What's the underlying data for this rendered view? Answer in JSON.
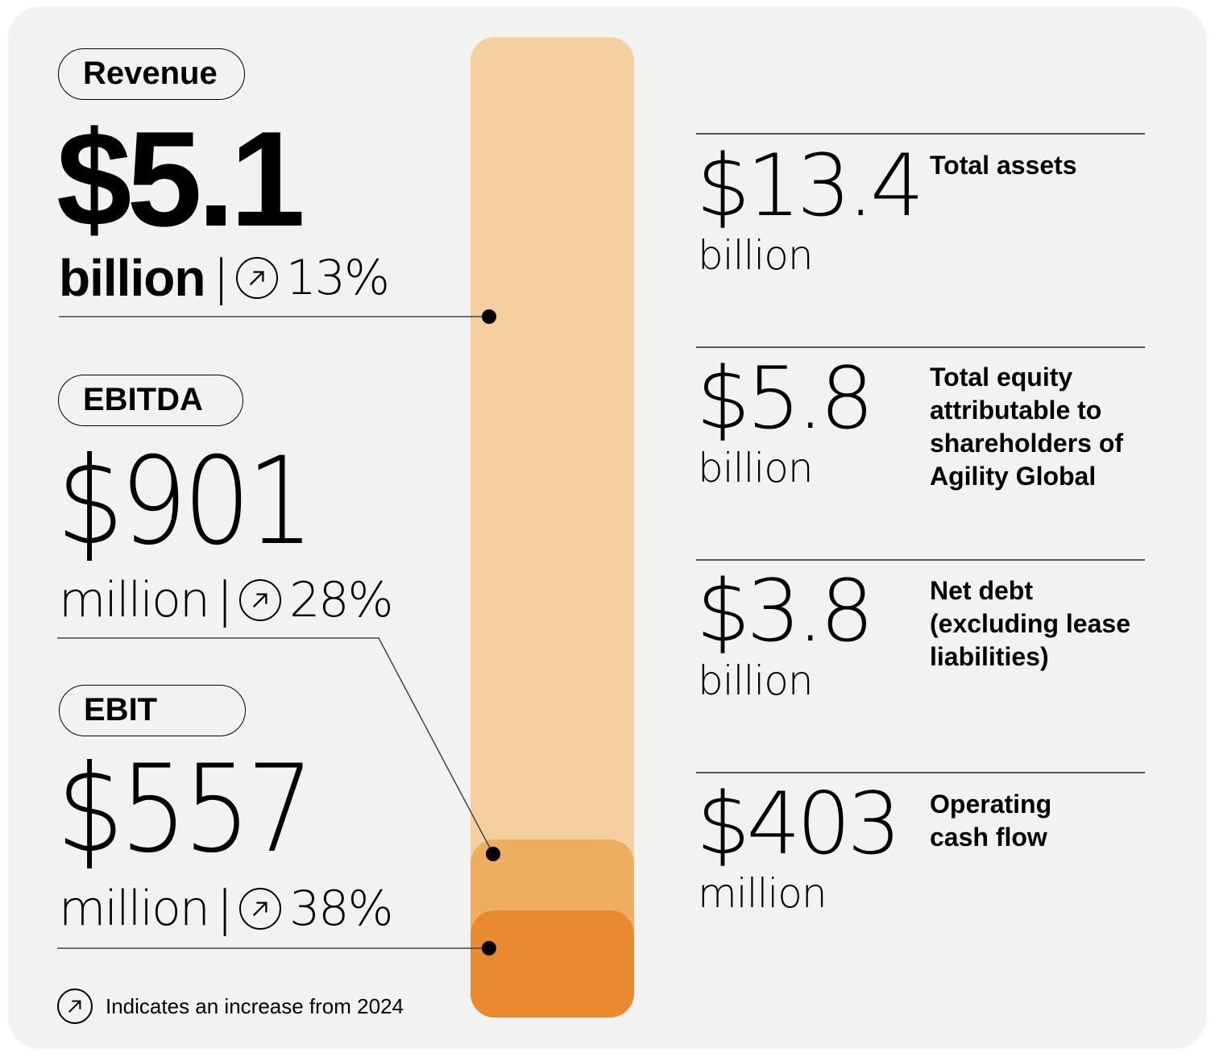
{
  "left": {
    "revenue": {
      "label": "Revenue",
      "value": "$5.1",
      "unit": "billion",
      "separator": "|",
      "change": "13%",
      "icon": "arrow-up-right-circle-icon"
    },
    "ebitda": {
      "label": "EBITDA",
      "value": "$901",
      "unit": "million",
      "separator": "|",
      "change": "28%",
      "icon": "arrow-up-right-circle-icon"
    },
    "ebit": {
      "label": "EBIT",
      "value": "$557",
      "unit": "million",
      "separator": "|",
      "change": "38%",
      "icon": "arrow-up-right-circle-icon"
    },
    "legend": {
      "icon": "arrow-up-right-circle-icon",
      "text": "Indicates an increase from 2024"
    }
  },
  "bar": {
    "colors": {
      "revenue": "#f4cfa0",
      "ebitda": "#eeae62",
      "ebit": "#e98931"
    }
  },
  "right": [
    {
      "value": "$13.4",
      "unit": "billion",
      "label": "Total assets"
    },
    {
      "value": "$5.8",
      "unit": "billion",
      "label": "Total equity attributable to shareholders of Agility Global"
    },
    {
      "value": "$3.8",
      "unit": "billion",
      "label": "Net debt (excluding lease liabilities)"
    },
    {
      "value": "$403",
      "unit": "million",
      "label": "Operating cash flow"
    }
  ]
}
